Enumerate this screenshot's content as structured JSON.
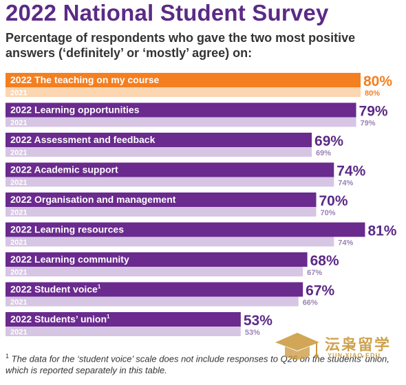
{
  "title": "2022 National Student Survey",
  "subtitle": "Percentage of respondents who gave the two most positive answers (‘definitely’ or ‘mostly’ agree) on:",
  "footnote": {
    "marker": "1",
    "text": "The data for the ‘student voice’ scale does not include responses to Q26 on the students’ union, which is reported separately in this table."
  },
  "watermark": {
    "text": "沄枭留学",
    "subtext": "YUN XIAO EDU"
  },
  "colors": {
    "highlight_2022": "#f47f20",
    "highlight_2021": "#fbd6b1",
    "bar_2022": "#6a2a8e",
    "bar_2021": "#d7c5e4",
    "label_2021": "#ffffff",
    "highlight_value": "#f47f20",
    "value_2022": "#5b2a86",
    "value_2021": "#9b82b4"
  },
  "chart_data": {
    "type": "bar",
    "orientation": "horizontal",
    "title": "2022 National Student Survey",
    "series_names": [
      "2022",
      "2021"
    ],
    "unit": "%",
    "xlim": [
      0,
      100
    ],
    "grid": false,
    "categories": [
      {
        "label": "The teaching on my course",
        "sup": "",
        "v2022": 80,
        "v2021": 80,
        "highlight": true
      },
      {
        "label": "Learning opportunities",
        "sup": "",
        "v2022": 79,
        "v2021": 79,
        "highlight": false
      },
      {
        "label": "Assessment and feedback",
        "sup": "",
        "v2022": 69,
        "v2021": 69,
        "highlight": false
      },
      {
        "label": "Academic support",
        "sup": "",
        "v2022": 74,
        "v2021": 74,
        "highlight": false
      },
      {
        "label": "Organisation and management",
        "sup": "",
        "v2022": 70,
        "v2021": 70,
        "highlight": false
      },
      {
        "label": "Learning resources",
        "sup": "",
        "v2022": 81,
        "v2021": 74,
        "highlight": false
      },
      {
        "label": "Learning community",
        "sup": "",
        "v2022": 68,
        "v2021": 67,
        "highlight": false
      },
      {
        "label": "Student voice",
        "sup": "1",
        "v2022": 67,
        "v2021": 66,
        "highlight": false
      },
      {
        "label": "Students’ union",
        "sup": "1",
        "v2022": 53,
        "v2021": 53,
        "highlight": false
      }
    ]
  }
}
